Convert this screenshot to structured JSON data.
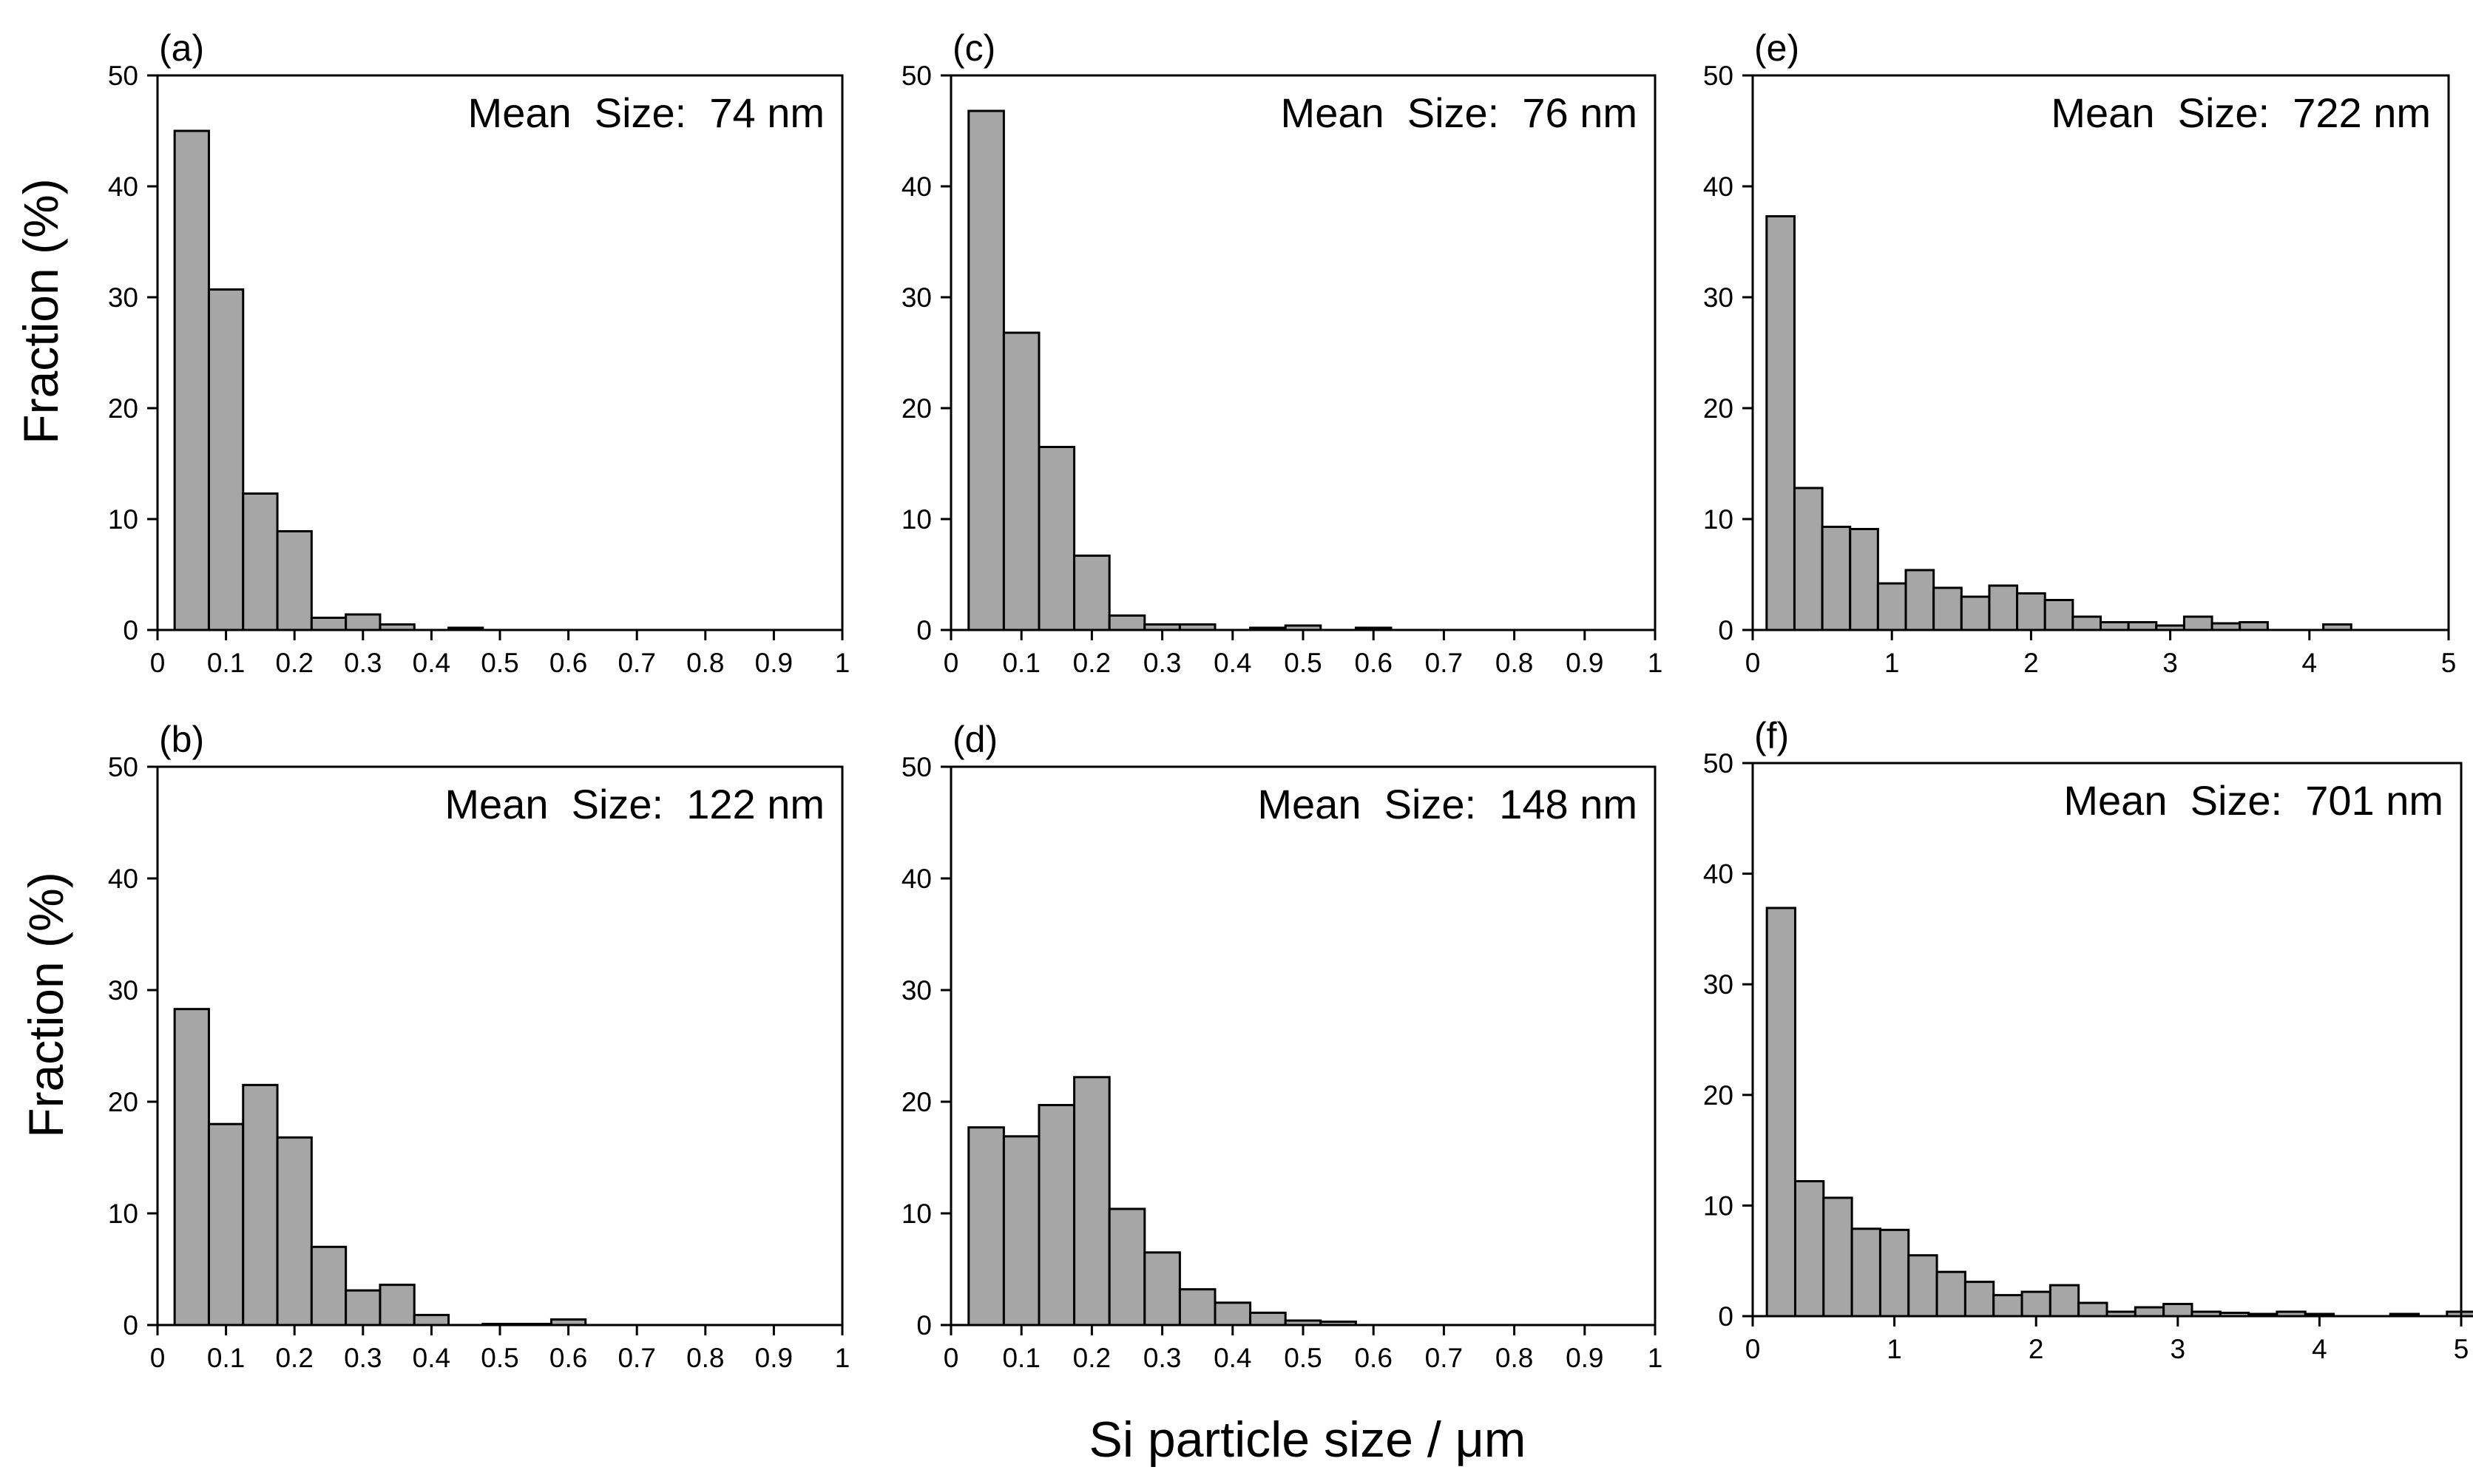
{
  "figure": {
    "ylabel": "Fraction (%)",
    "xlabel": "Si particle size / μm"
  },
  "colors": {
    "bar_fill": "#a6a6a6",
    "bar_stroke": "#000000",
    "axis": "#000000"
  },
  "chart_data": [
    {
      "id": "a",
      "type": "bar",
      "panel_label": "(a)",
      "annotation": "Mean  Size:  74 nm",
      "xlim": [
        0,
        1
      ],
      "ylim": [
        0,
        50
      ],
      "xticks": [
        "0",
        "0.1",
        "0.2",
        "0.3",
        "0.4",
        "0.5",
        "0.6",
        "0.7",
        "0.8",
        "0.9",
        "1"
      ],
      "yticks": [
        "0",
        "10",
        "20",
        "30",
        "40",
        "50"
      ],
      "bin_width": 0.05,
      "bin_start": 0.025,
      "values": [
        45.0,
        30.7,
        12.3,
        8.9,
        1.1,
        1.4,
        0.5,
        0,
        0.2
      ]
    },
    {
      "id": "c",
      "type": "bar",
      "panel_label": "(c)",
      "annotation": "Mean  Size:  76 nm",
      "xlim": [
        0,
        1
      ],
      "ylim": [
        0,
        50
      ],
      "xticks": [
        "0",
        "0.1",
        "0.2",
        "0.3",
        "0.4",
        "0.5",
        "0.6",
        "0.7",
        "0.8",
        "0.9",
        "1"
      ],
      "yticks": [
        "0",
        "10",
        "20",
        "30",
        "40",
        "50"
      ],
      "bin_width": 0.05,
      "bin_start": 0.025,
      "values": [
        46.8,
        26.8,
        16.5,
        6.7,
        1.3,
        0.5,
        0.5,
        0,
        0.2,
        0.4,
        0,
        0.2
      ]
    },
    {
      "id": "e",
      "type": "bar",
      "panel_label": "(e)",
      "annotation": "Mean  Size:  722 nm",
      "xlim": [
        0,
        5
      ],
      "ylim": [
        0,
        50
      ],
      "xticks": [
        "0",
        "1",
        "2",
        "3",
        "4",
        "5"
      ],
      "yticks": [
        "0",
        "10",
        "20",
        "30",
        "40",
        "50"
      ],
      "bin_width": 0.2,
      "bin_start": 0.1,
      "values": [
        37.3,
        12.8,
        9.3,
        9.1,
        4.2,
        5.4,
        3.8,
        3.0,
        4.0,
        3.3,
        2.7,
        1.2,
        0.7,
        0.7,
        0.4,
        1.2,
        0.6,
        0.7,
        0,
        0,
        0.5
      ]
    },
    {
      "id": "b",
      "type": "bar",
      "panel_label": "(b)",
      "annotation": "Mean  Size:  122 nm",
      "xlim": [
        0,
        1
      ],
      "ylim": [
        0,
        50
      ],
      "xticks": [
        "0",
        "0.1",
        "0.2",
        "0.3",
        "0.4",
        "0.5",
        "0.6",
        "0.7",
        "0.8",
        "0.9",
        "1"
      ],
      "yticks": [
        "0",
        "10",
        "20",
        "30",
        "40",
        "50"
      ],
      "bin_width": 0.05,
      "bin_start": 0.025,
      "values": [
        28.3,
        18.0,
        21.5,
        16.8,
        7.0,
        3.1,
        3.6,
        0.9,
        0,
        0.1,
        0.1,
        0.5
      ]
    },
    {
      "id": "d",
      "type": "bar",
      "panel_label": "(d)",
      "annotation": "Mean  Size:  148 nm",
      "xlim": [
        0,
        1
      ],
      "ylim": [
        0,
        50
      ],
      "xticks": [
        "0",
        "0.1",
        "0.2",
        "0.3",
        "0.4",
        "0.5",
        "0.6",
        "0.7",
        "0.8",
        "0.9",
        "1"
      ],
      "yticks": [
        "0",
        "10",
        "20",
        "30",
        "40",
        "50"
      ],
      "bin_width": 0.05,
      "bin_start": 0.025,
      "values": [
        17.7,
        16.9,
        19.7,
        22.2,
        10.4,
        6.5,
        3.2,
        2.0,
        1.1,
        0.4,
        0.3
      ]
    },
    {
      "id": "f",
      "type": "bar",
      "panel_label": "(f)",
      "annotation": "Mean  Size:  701 nm",
      "xlim": [
        0,
        5
      ],
      "ylim": [
        0,
        50
      ],
      "xticks": [
        "0",
        "1",
        "2",
        "3",
        "4",
        "5"
      ],
      "yticks": [
        "0",
        "10",
        "20",
        "30",
        "40",
        "50"
      ],
      "bin_width": 0.2,
      "bin_start": 0.1,
      "values": [
        36.9,
        12.2,
        10.7,
        7.9,
        7.8,
        5.5,
        4.0,
        3.1,
        1.9,
        2.2,
        2.8,
        1.2,
        0.4,
        0.8,
        1.1,
        0.4,
        0.3,
        0.2,
        0.4,
        0.2,
        0,
        0,
        0.2,
        0,
        0.4
      ]
    }
  ]
}
